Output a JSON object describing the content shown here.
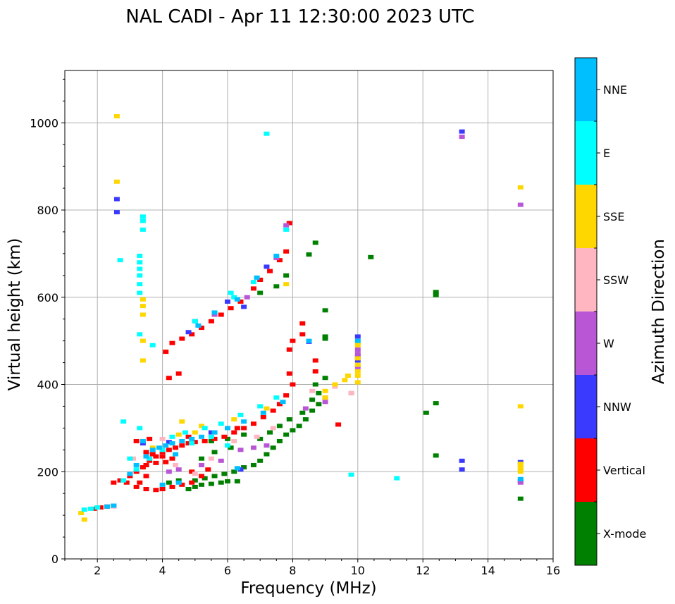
{
  "chart_data": {
    "type": "scatter",
    "title": "NAL CADI - Apr 11 12:30:00 2023 UTC",
    "xlabel": "Frequency (MHz)",
    "ylabel": "Virtual height (km)",
    "xlim": [
      1,
      16
    ],
    "ylim": [
      0,
      1120
    ],
    "xticks": [
      "2",
      "4",
      "6",
      "8",
      "10",
      "12",
      "14",
      "16"
    ],
    "xtick_values": [
      2,
      4,
      6,
      8,
      10,
      12,
      14,
      16
    ],
    "yticks": [
      "0",
      "200",
      "400",
      "600",
      "800",
      "1000"
    ],
    "ytick_values": [
      0,
      200,
      400,
      600,
      800,
      1000
    ],
    "grid": true,
    "colorbar": {
      "title": "Azimuth Direction",
      "categories": [
        {
          "label": "X-mode",
          "color": "#008000"
        },
        {
          "label": "Vertical",
          "color": "#ff0000"
        },
        {
          "label": "NNW",
          "color": "#3a3aff"
        },
        {
          "label": "W",
          "color": "#b856d6"
        },
        {
          "label": "SSW",
          "color": "#ffb6c1"
        },
        {
          "label": "SSE",
          "color": "#ffd700"
        },
        {
          "label": "E",
          "color": "#00ffff"
        },
        {
          "label": "NNE",
          "color": "#00bfff"
        }
      ]
    },
    "series": [
      {
        "name": "X-mode",
        "points": [
          [
            4.8,
            160
          ],
          [
            5.0,
            165
          ],
          [
            5.2,
            170
          ],
          [
            5.5,
            172
          ],
          [
            5.8,
            175
          ],
          [
            6.0,
            178
          ],
          [
            6.3,
            178
          ],
          [
            5.0,
            180
          ],
          [
            5.3,
            185
          ],
          [
            5.6,
            190
          ],
          [
            5.9,
            195
          ],
          [
            6.2,
            200
          ],
          [
            6.5,
            210
          ],
          [
            6.8,
            215
          ],
          [
            7.0,
            225
          ],
          [
            7.2,
            240
          ],
          [
            7.4,
            255
          ],
          [
            7.6,
            270
          ],
          [
            7.8,
            285
          ],
          [
            8.0,
            295
          ],
          [
            8.2,
            305
          ],
          [
            8.4,
            320
          ],
          [
            8.6,
            340
          ],
          [
            8.8,
            355
          ],
          [
            9.0,
            370
          ],
          [
            7.0,
            275
          ],
          [
            7.3,
            290
          ],
          [
            7.6,
            305
          ],
          [
            7.9,
            320
          ],
          [
            8.3,
            335
          ],
          [
            8.6,
            365
          ],
          [
            8.8,
            380
          ],
          [
            8.7,
            400
          ],
          [
            9.0,
            415
          ],
          [
            8.5,
            698
          ],
          [
            8.7,
            725
          ],
          [
            9.0,
            570
          ],
          [
            9.0,
            505
          ],
          [
            9.0,
            510
          ],
          [
            10.4,
            692
          ],
          [
            12.1,
            335
          ],
          [
            12.4,
            357
          ],
          [
            12.4,
            237
          ],
          [
            12.4,
            605
          ],
          [
            12.4,
            612
          ],
          [
            15.0,
            138
          ],
          [
            5.5,
            270
          ],
          [
            6.0,
            275
          ],
          [
            6.5,
            285
          ],
          [
            7.8,
            650
          ],
          [
            7.5,
            625
          ],
          [
            7.0,
            610
          ],
          [
            5.2,
            230
          ],
          [
            5.6,
            245
          ],
          [
            6.1,
            255
          ],
          [
            4.2,
            175
          ],
          [
            4.5,
            180
          ]
        ]
      },
      {
        "name": "Vertical",
        "points": [
          [
            1.9,
            115
          ],
          [
            2.1,
            118
          ],
          [
            2.3,
            120
          ],
          [
            2.5,
            122
          ],
          [
            2.5,
            175
          ],
          [
            2.7,
            180
          ],
          [
            3.0,
            190
          ],
          [
            3.2,
            200
          ],
          [
            3.4,
            210
          ],
          [
            3.6,
            225
          ],
          [
            3.8,
            235
          ],
          [
            4.0,
            245
          ],
          [
            4.2,
            250
          ],
          [
            4.4,
            255
          ],
          [
            4.6,
            260
          ],
          [
            4.8,
            265
          ],
          [
            5.0,
            268
          ],
          [
            5.3,
            270
          ],
          [
            5.6,
            275
          ],
          [
            5.9,
            280
          ],
          [
            6.2,
            290
          ],
          [
            6.5,
            300
          ],
          [
            6.8,
            310
          ],
          [
            7.1,
            325
          ],
          [
            7.4,
            340
          ],
          [
            7.6,
            355
          ],
          [
            7.8,
            375
          ],
          [
            8.0,
            400
          ],
          [
            7.9,
            425
          ],
          [
            7.9,
            480
          ],
          [
            8.0,
            500
          ],
          [
            8.3,
            515
          ],
          [
            8.3,
            540
          ],
          [
            8.7,
            455
          ],
          [
            8.7,
            430
          ],
          [
            3.2,
            165
          ],
          [
            3.5,
            160
          ],
          [
            3.8,
            158
          ],
          [
            4.0,
            160
          ],
          [
            4.3,
            165
          ],
          [
            4.6,
            170
          ],
          [
            4.9,
            175
          ],
          [
            5.2,
            190
          ],
          [
            3.5,
            245
          ],
          [
            3.7,
            240
          ],
          [
            4.0,
            235
          ],
          [
            4.3,
            230
          ],
          [
            3.5,
            215
          ],
          [
            3.8,
            220
          ],
          [
            4.1,
            222
          ],
          [
            4.2,
            415
          ],
          [
            4.5,
            425
          ],
          [
            4.1,
            475
          ],
          [
            4.3,
            495
          ],
          [
            4.6,
            505
          ],
          [
            4.9,
            515
          ],
          [
            5.2,
            530
          ],
          [
            5.5,
            545
          ],
          [
            5.8,
            560
          ],
          [
            6.1,
            575
          ],
          [
            6.4,
            590
          ],
          [
            6.8,
            620
          ],
          [
            7.0,
            640
          ],
          [
            7.3,
            660
          ],
          [
            7.6,
            685
          ],
          [
            7.8,
            705
          ],
          [
            7.9,
            770
          ],
          [
            3.2,
            270
          ],
          [
            3.6,
            275
          ],
          [
            4.8,
            280
          ],
          [
            5.6,
            290
          ],
          [
            6.3,
            300
          ],
          [
            2.9,
            175
          ],
          [
            3.3,
            175
          ],
          [
            3.5,
            190
          ],
          [
            4.9,
            200
          ],
          [
            5.4,
            205
          ],
          [
            9.4,
            308
          ]
        ]
      },
      {
        "name": "NNW",
        "points": [
          [
            2.6,
            795
          ],
          [
            2.6,
            825
          ],
          [
            4.8,
            520
          ],
          [
            6.0,
            590
          ],
          [
            8.5,
            498
          ],
          [
            10.0,
            510
          ],
          [
            10.0,
            465
          ],
          [
            10.0,
            455
          ],
          [
            13.2,
            205
          ],
          [
            13.2,
            225
          ],
          [
            13.2,
            980
          ],
          [
            15.0,
            178
          ],
          [
            15.0,
            222
          ],
          [
            6.4,
            205
          ],
          [
            5.5,
            290
          ],
          [
            4.2,
            268
          ],
          [
            3.4,
            265
          ],
          [
            7.2,
            670
          ],
          [
            6.5,
            578
          ],
          [
            5.0,
            545
          ]
        ]
      },
      {
        "name": "W",
        "points": [
          [
            4.2,
            200
          ],
          [
            4.5,
            205
          ],
          [
            5.2,
            215
          ],
          [
            5.8,
            225
          ],
          [
            6.4,
            250
          ],
          [
            6.8,
            255
          ],
          [
            7.2,
            260
          ],
          [
            8.4,
            345
          ],
          [
            9.0,
            360
          ],
          [
            9.8,
            380
          ],
          [
            10.0,
            440
          ],
          [
            10.0,
            470
          ],
          [
            10.0,
            480
          ],
          [
            13.2,
            968
          ],
          [
            15.0,
            812
          ],
          [
            15.0,
            175
          ],
          [
            7.5,
            690
          ],
          [
            6.6,
            600
          ],
          [
            5.6,
            560
          ],
          [
            7.8,
            765
          ]
        ]
      },
      {
        "name": "SSW",
        "points": [
          [
            2.5,
            120
          ],
          [
            3.1,
            230
          ],
          [
            4.4,
            215
          ],
          [
            5.5,
            230
          ],
          [
            6.9,
            280
          ],
          [
            7.4,
            300
          ],
          [
            8.6,
            385
          ],
          [
            9.3,
            395
          ],
          [
            9.8,
            380
          ],
          [
            6.2,
            270
          ],
          [
            5.0,
            195
          ],
          [
            4.0,
            275
          ]
        ]
      },
      {
        "name": "SSE",
        "points": [
          [
            1.5,
            105
          ],
          [
            1.6,
            90
          ],
          [
            2.6,
            1015
          ],
          [
            2.6,
            865
          ],
          [
            3.4,
            455
          ],
          [
            3.4,
            500
          ],
          [
            3.4,
            560
          ],
          [
            3.4,
            580
          ],
          [
            3.4,
            595
          ],
          [
            4.6,
            315
          ],
          [
            5.2,
            305
          ],
          [
            6.2,
            320
          ],
          [
            7.2,
            345
          ],
          [
            9.0,
            370
          ],
          [
            9.0,
            385
          ],
          [
            9.3,
            400
          ],
          [
            9.6,
            410
          ],
          [
            9.7,
            420
          ],
          [
            10.0,
            405
          ],
          [
            10.0,
            420
          ],
          [
            10.0,
            430
          ],
          [
            10.0,
            445
          ],
          [
            10.0,
            460
          ],
          [
            10.0,
            490
          ],
          [
            10.0,
            495
          ],
          [
            15.0,
            852
          ],
          [
            15.0,
            350
          ],
          [
            15.0,
            200
          ],
          [
            15.0,
            205
          ],
          [
            15.0,
            210
          ],
          [
            15.0,
            215
          ],
          [
            15.0,
            218
          ],
          [
            4.5,
            285
          ],
          [
            3.7,
            255
          ],
          [
            5.0,
            290
          ],
          [
            7.8,
            630
          ]
        ]
      },
      {
        "name": "E",
        "points": [
          [
            1.6,
            113
          ],
          [
            1.8,
            115
          ],
          [
            2.0,
            118
          ],
          [
            2.8,
            180
          ],
          [
            2.8,
            315
          ],
          [
            3.0,
            230
          ],
          [
            3.3,
            300
          ],
          [
            3.4,
            785
          ],
          [
            3.4,
            775
          ],
          [
            3.4,
            755
          ],
          [
            3.3,
            695
          ],
          [
            3.3,
            680
          ],
          [
            3.3,
            665
          ],
          [
            3.3,
            650
          ],
          [
            3.3,
            630
          ],
          [
            3.3,
            610
          ],
          [
            3.3,
            515
          ],
          [
            3.7,
            490
          ],
          [
            2.7,
            685
          ],
          [
            4.0,
            250
          ],
          [
            4.3,
            280
          ],
          [
            4.7,
            290
          ],
          [
            5.3,
            300
          ],
          [
            5.8,
            310
          ],
          [
            6.4,
            330
          ],
          [
            7.0,
            350
          ],
          [
            7.5,
            370
          ],
          [
            5.5,
            280
          ],
          [
            5.0,
            545
          ],
          [
            6.2,
            600
          ],
          [
            6.8,
            635
          ],
          [
            7.2,
            975
          ],
          [
            7.8,
            755
          ],
          [
            9.8,
            193
          ],
          [
            11.2,
            185
          ],
          [
            6.0,
            260
          ],
          [
            3.2,
            205
          ],
          [
            3.6,
            230
          ],
          [
            4.9,
            265
          ],
          [
            6.1,
            610
          ]
        ]
      },
      {
        "name": "NNE",
        "points": [
          [
            2.3,
            120
          ],
          [
            2.5,
            122
          ],
          [
            3.0,
            195
          ],
          [
            3.2,
            215
          ],
          [
            3.5,
            235
          ],
          [
            3.7,
            250
          ],
          [
            3.9,
            255
          ],
          [
            4.1,
            260
          ],
          [
            4.3,
            265
          ],
          [
            4.6,
            270
          ],
          [
            4.9,
            275
          ],
          [
            5.2,
            280
          ],
          [
            5.6,
            290
          ],
          [
            6.0,
            300
          ],
          [
            6.5,
            315
          ],
          [
            7.1,
            335
          ],
          [
            7.7,
            360
          ],
          [
            4.5,
            175
          ],
          [
            4.0,
            170
          ],
          [
            5.1,
            535
          ],
          [
            5.6,
            565
          ],
          [
            6.3,
            595
          ],
          [
            6.9,
            645
          ],
          [
            7.5,
            695
          ],
          [
            10.0,
            500
          ],
          [
            8.5,
            500
          ],
          [
            15.0,
            183
          ],
          [
            6.3,
            208
          ],
          [
            3.4,
            270
          ],
          [
            4.4,
            240
          ]
        ]
      }
    ]
  }
}
